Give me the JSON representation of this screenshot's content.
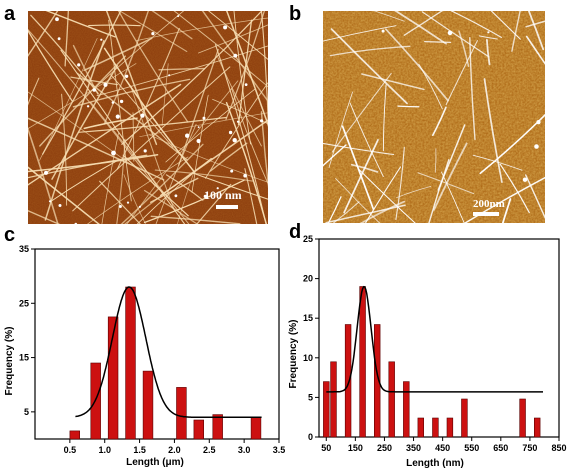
{
  "panels": {
    "a": {
      "letter": "a",
      "scale_label": "100 nm",
      "background": "#8a3a0c",
      "fiber_color": "#f6dcb0"
    },
    "b": {
      "letter": "b",
      "scale_label": "200nm",
      "background": "#a8600e",
      "fiber_color": "#ffffff"
    },
    "c": {
      "letter": "c"
    },
    "d": {
      "letter": "d"
    }
  },
  "colors": {
    "bar_fill": "#cc1111",
    "bar_stroke": "#5a0000",
    "fit_line": "#000000"
  },
  "chart_data": [
    {
      "type": "bar",
      "panel": "c",
      "xlabel": "Length (μm)",
      "ylabel": "Frequency (%)",
      "xlim": [
        0,
        3.5
      ],
      "ylim": [
        0,
        35
      ],
      "x_ticks": [
        0.5,
        1.0,
        1.5,
        2.0,
        2.5,
        3.0,
        3.5
      ],
      "x_tick_labels": [
        "0.5",
        "1.0",
        "1.5",
        "2.0",
        "2.5",
        "3.0",
        "3.5"
      ],
      "y_ticks": [
        5,
        15,
        25,
        35
      ],
      "y_tick_labels": [
        "5",
        "15",
        "25",
        "35"
      ],
      "bar_width": 0.14,
      "x": [
        0.57,
        0.87,
        1.12,
        1.37,
        1.62,
        1.85,
        2.1,
        2.35,
        2.62,
        2.87,
        3.17
      ],
      "values": [
        1.5,
        14.0,
        22.5,
        28.0,
        12.5,
        0,
        9.5,
        3.5,
        4.5,
        0,
        4.0
      ],
      "fit": {
        "kind": "gaussian",
        "baseline": 4.0,
        "amplitude": 24.0,
        "center": 1.35,
        "sigma": 0.24,
        "x_range": [
          0.58,
          3.25
        ]
      }
    },
    {
      "type": "bar",
      "panel": "d",
      "xlabel": "Length (nm)",
      "ylabel": "Frequency (%)",
      "xlim": [
        25,
        850
      ],
      "ylim": [
        0,
        25
      ],
      "x_ticks": [
        50,
        150,
        250,
        350,
        450,
        550,
        650,
        750,
        850
      ],
      "x_tick_labels": [
        "50",
        "150",
        "250",
        "350",
        "450",
        "550",
        "650",
        "750",
        "850"
      ],
      "y_ticks": [
        0,
        5,
        10,
        15,
        20,
        25
      ],
      "y_tick_labels": [
        "0",
        "5",
        "10",
        "15",
        "20",
        "25"
      ],
      "bar_width": 20,
      "x": [
        50,
        75,
        100,
        125,
        150,
        175,
        200,
        225,
        250,
        275,
        300,
        325,
        350,
        375,
        400,
        425,
        450,
        475,
        500,
        525,
        550,
        575,
        600,
        625,
        650,
        675,
        700,
        725,
        750,
        775,
        800
      ],
      "values": [
        7,
        9.5,
        0,
        14.2,
        0,
        19,
        0,
        14.2,
        0,
        9.5,
        0,
        7,
        0,
        2.4,
        0,
        2.4,
        0,
        2.4,
        0,
        4.8,
        0,
        0,
        0,
        0,
        0,
        0,
        0,
        4.8,
        0,
        2.4,
        0
      ],
      "fit": {
        "kind": "gaussian",
        "baseline": 5.7,
        "amplitude": 13.3,
        "center": 180,
        "sigma": 24,
        "x_range": [
          50,
          795
        ]
      }
    }
  ]
}
